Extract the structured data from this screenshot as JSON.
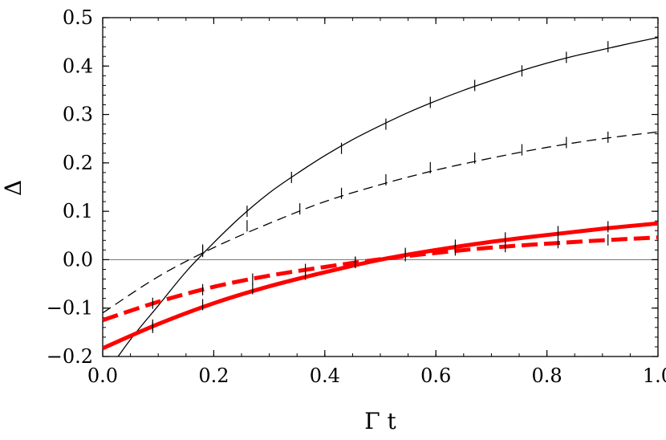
{
  "chart_data": {
    "type": "line",
    "title": "",
    "xlabel": "Γ t",
    "ylabel": "Δ",
    "xlim": [
      0.0,
      1.0
    ],
    "ylim": [
      -0.2,
      0.5
    ],
    "grid": false,
    "zero_line": true,
    "x_ticks": [
      "0.0",
      "0.2",
      "0.4",
      "0.6",
      "0.8",
      "1.0"
    ],
    "y_ticks": [
      "−0.2",
      "−0.1",
      "0.0",
      "0.1",
      "0.2",
      "0.3",
      "0.4",
      "0.5"
    ],
    "colors": {
      "black": "#000000",
      "red": "#ff0000",
      "zero_line": "#808080"
    },
    "series": [
      {
        "color": "#000000",
        "style": "solid",
        "width": 1.3,
        "x": [
          0,
          0.05,
          0.1,
          0.15,
          0.2,
          0.25,
          0.3,
          0.35,
          0.4,
          0.45,
          0.5,
          0.55,
          0.6,
          0.65,
          0.7,
          0.75,
          0.8,
          0.85,
          0.9,
          0.95,
          1.0
        ],
        "y": [
          -0.245,
          -0.165,
          -0.095,
          -0.025,
          0.035,
          0.09,
          0.138,
          0.178,
          0.215,
          0.248,
          0.277,
          0.304,
          0.328,
          0.35,
          0.37,
          0.389,
          0.406,
          0.421,
          0.434,
          0.447,
          0.459
        ],
        "markers_x": [
          0.09,
          0.18,
          0.26,
          0.34,
          0.43,
          0.51,
          0.59,
          0.67,
          0.755,
          0.835,
          0.91
        ],
        "markers_y": [
          -0.135,
          0.02,
          0.1,
          0.17,
          0.23,
          0.28,
          0.325,
          0.36,
          0.39,
          0.418,
          0.44
        ]
      },
      {
        "color": "#000000",
        "style": "dashed",
        "width": 1.3,
        "x": [
          0,
          0.1,
          0.2,
          0.3,
          0.4,
          0.5,
          0.6,
          0.7,
          0.8,
          0.9,
          1.0
        ],
        "y": [
          -0.11,
          -0.035,
          0.025,
          0.075,
          0.12,
          0.155,
          0.185,
          0.21,
          0.232,
          0.25,
          0.264
        ],
        "markers_x": [
          0.18,
          0.26,
          0.355,
          0.43,
          0.51,
          0.59,
          0.67,
          0.755,
          0.835,
          0.91
        ],
        "markers_y": [
          0.017,
          0.07,
          0.105,
          0.137,
          0.165,
          0.19,
          0.21,
          0.227,
          0.242,
          0.253
        ]
      },
      {
        "color": "#ff0000",
        "style": "solid",
        "width": 5,
        "x": [
          0,
          0.1,
          0.2,
          0.3,
          0.4,
          0.5,
          0.6,
          0.7,
          0.8,
          0.9,
          1.0
        ],
        "y": [
          -0.183,
          -0.133,
          -0.09,
          -0.055,
          -0.026,
          0.0,
          0.02,
          0.037,
          0.051,
          0.064,
          0.075
        ],
        "markers_x": [
          0.09,
          0.18,
          0.27,
          0.365,
          0.455,
          0.545,
          0.635,
          0.725,
          0.82,
          0.91
        ],
        "markers_y": [
          -0.14,
          -0.093,
          -0.06,
          -0.03,
          -0.006,
          0.013,
          0.03,
          0.045,
          0.058,
          0.068
        ]
      },
      {
        "color": "#ff0000",
        "style": "dashed",
        "width": 5,
        "x": [
          0,
          0.1,
          0.2,
          0.3,
          0.4,
          0.5,
          0.6,
          0.7,
          0.8,
          0.9,
          1.0
        ],
        "y": [
          -0.125,
          -0.087,
          -0.056,
          -0.033,
          -0.015,
          0.001,
          0.014,
          0.025,
          0.033,
          0.04,
          0.046
        ],
        "markers_x": [
          0.09,
          0.18,
          0.27,
          0.365,
          0.455,
          0.545,
          0.635,
          0.725,
          0.82,
          0.91
        ],
        "markers_y": [
          -0.09,
          -0.062,
          -0.04,
          -0.02,
          -0.005,
          0.008,
          0.02,
          0.027,
          0.035,
          0.041
        ]
      }
    ]
  }
}
